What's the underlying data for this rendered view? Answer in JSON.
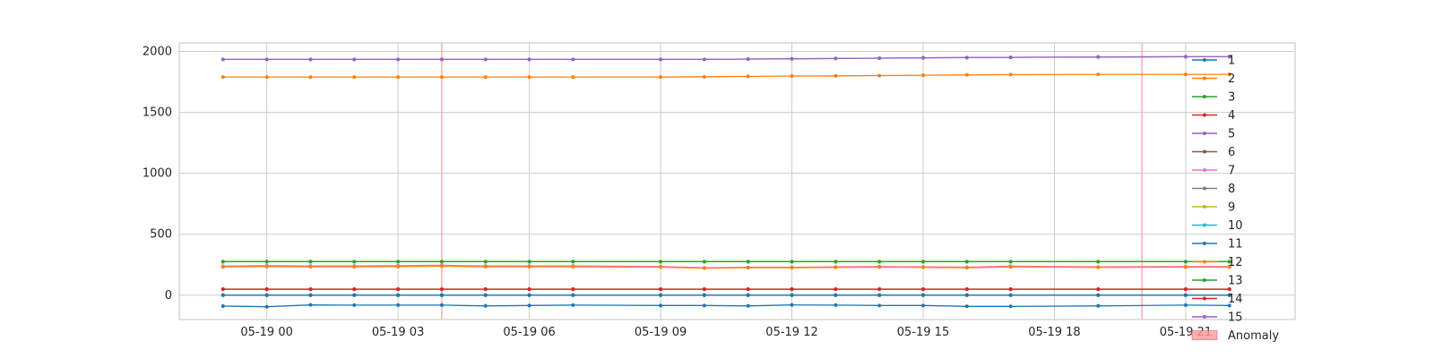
{
  "chart_data": {
    "type": "line",
    "title": "",
    "xlabel": "",
    "ylabel": "",
    "x_ticks": [
      "05-19 00",
      "05-19 03",
      "05-19 06",
      "05-19 09",
      "05-19 12",
      "05-19 15",
      "05-19 18",
      "05-19 21"
    ],
    "y_ticks": [
      "2000",
      "1500",
      "1000",
      "500",
      "0"
    ],
    "xlim": [
      "05-18 22:00",
      "05-19 23:30"
    ],
    "ylim": [
      -200,
      2070
    ],
    "grid": true,
    "legend_position": "right",
    "x": [
      "05-18 23:00",
      "05-19 00:00",
      "05-19 01:00",
      "05-19 02:00",
      "05-19 03:00",
      "05-19 04:00",
      "05-19 05:00",
      "05-19 06:00",
      "05-19 07:00",
      "05-19 09:00",
      "05-19 10:00",
      "05-19 11:00",
      "05-19 12:00",
      "05-19 13:00",
      "05-19 14:00",
      "05-19 15:00",
      "05-19 16:00",
      "05-19 17:00",
      "05-19 19:00",
      "05-19 21:00",
      "05-19 22:00"
    ],
    "series": [
      {
        "name": "1",
        "color": "#1f77b4",
        "values": [
          -90,
          -95,
          -80,
          -82,
          -82,
          -82,
          -88,
          -85,
          -82,
          -85,
          -85,
          -88,
          -80,
          -82,
          -85,
          -85,
          -92,
          -92,
          -88,
          -82,
          -85
        ]
      },
      {
        "name": "2",
        "color": "#ff7f0e",
        "values": [
          1790,
          1790,
          1790,
          1790,
          1790,
          1790,
          1790,
          1790,
          1790,
          1790,
          1792,
          1795,
          1798,
          1800,
          1802,
          1805,
          1808,
          1810,
          1812,
          1812,
          1812
        ]
      },
      {
        "name": "3",
        "color": "#2ca02c",
        "values": [
          275,
          275,
          275,
          275,
          275,
          275,
          275,
          275,
          275,
          275,
          275,
          275,
          275,
          275,
          275,
          275,
          275,
          275,
          275,
          275,
          275
        ]
      },
      {
        "name": "4",
        "color": "#d62728",
        "values": [
          50,
          50,
          50,
          50,
          50,
          50,
          50,
          50,
          50,
          50,
          50,
          50,
          50,
          50,
          50,
          50,
          50,
          50,
          50,
          50,
          50
        ]
      },
      {
        "name": "5",
        "color": "#9467bd",
        "values": [
          1935,
          1935,
          1935,
          1935,
          1935,
          1935,
          1935,
          1935,
          1935,
          1935,
          1935,
          1938,
          1940,
          1942,
          1945,
          1948,
          1950,
          1952,
          1955,
          1957,
          1957
        ]
      },
      {
        "name": "6",
        "color": "#8c564b",
        "values": [
          0,
          0,
          0,
          0,
          0,
          0,
          0,
          0,
          0,
          0,
          0,
          0,
          0,
          0,
          0,
          0,
          0,
          0,
          0,
          0,
          0
        ]
      },
      {
        "name": "7",
        "color": "#e377c2",
        "values": [
          238,
          242,
          240,
          240,
          242,
          245,
          240,
          240,
          240,
          235,
          225,
          228,
          228,
          232,
          235,
          232,
          230,
          238,
          232,
          235,
          235
        ]
      },
      {
        "name": "8",
        "color": "#7f7f7f",
        "values": [
          0,
          0,
          0,
          0,
          0,
          0,
          0,
          0,
          0,
          0,
          0,
          0,
          0,
          0,
          0,
          0,
          0,
          0,
          0,
          0,
          0
        ]
      },
      {
        "name": "9",
        "color": "#bcbd22",
        "values": [
          0,
          0,
          0,
          0,
          0,
          0,
          0,
          0,
          0,
          0,
          0,
          0,
          0,
          0,
          0,
          0,
          0,
          0,
          0,
          0,
          0
        ]
      },
      {
        "name": "10",
        "color": "#17becf",
        "values": [
          0,
          0,
          0,
          0,
          0,
          0,
          0,
          0,
          0,
          0,
          0,
          0,
          0,
          0,
          0,
          0,
          0,
          0,
          0,
          0,
          0
        ]
      },
      {
        "name": "11",
        "color": "#1f77b4",
        "values": [
          0,
          0,
          0,
          0,
          0,
          0,
          0,
          0,
          0,
          0,
          0,
          0,
          0,
          0,
          0,
          0,
          0,
          0,
          0,
          0,
          0
        ]
      },
      {
        "name": "12",
        "color": "#ff7f0e",
        "values": [
          232,
          235,
          233,
          233,
          235,
          238,
          233,
          233,
          233,
          230,
          222,
          225,
          225,
          228,
          230,
          228,
          225,
          232,
          228,
          230,
          230
        ]
      },
      {
        "name": "13",
        "color": "#2ca02c",
        "values": [
          275,
          275,
          275,
          275,
          275,
          275,
          275,
          275,
          275,
          275,
          275,
          275,
          275,
          275,
          275,
          275,
          275,
          275,
          275,
          275,
          275
        ]
      },
      {
        "name": "14",
        "color": "#d62728",
        "values": [
          48,
          48,
          48,
          48,
          48,
          48,
          48,
          48,
          48,
          48,
          48,
          48,
          48,
          48,
          48,
          48,
          48,
          48,
          48,
          48,
          48
        ]
      },
      {
        "name": "15",
        "color": "#9467bd",
        "values": [
          1935,
          1935,
          1935,
          1935,
          1935,
          1935,
          1935,
          1935,
          1935,
          1935,
          1935,
          1938,
          1940,
          1942,
          1945,
          1948,
          1950,
          1952,
          1955,
          1957,
          1957
        ]
      }
    ],
    "anomalies": [
      "05-19 04:00",
      "05-19 20:00"
    ],
    "anomaly_label": "Anomaly",
    "anomaly_color": "#ff9999"
  }
}
